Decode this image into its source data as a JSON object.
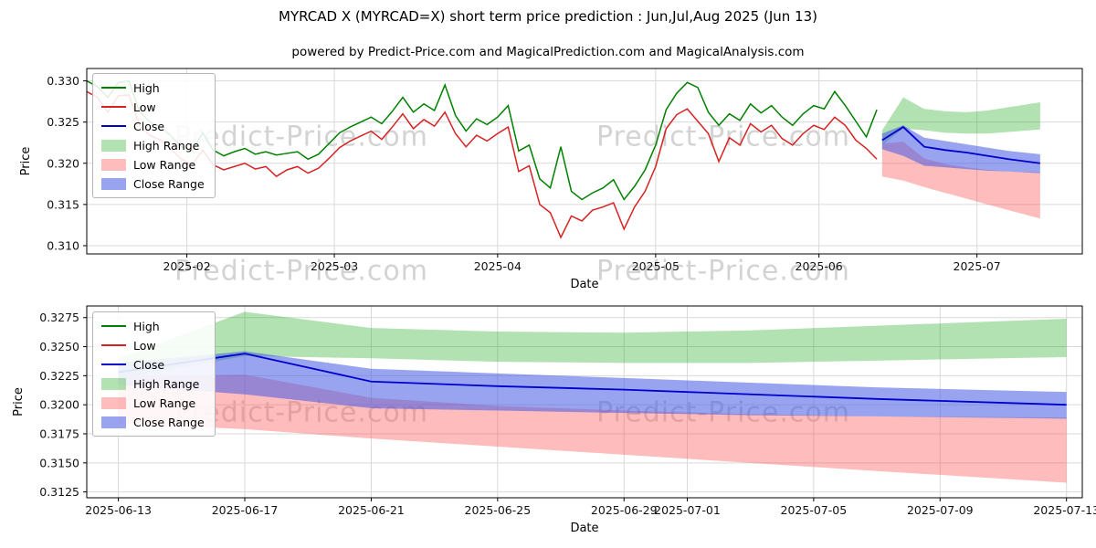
{
  "figure": {
    "title": "MYRCAD X (MYRCAD=X) short term price prediction : Jun,Jul,Aug 2025 (Jun 13)",
    "subtitle": "powered by Predict-Price.com and MagicalPrediction.com and MagicalAnalysis.com",
    "watermark_text": "Predict-Price.com"
  },
  "colors": {
    "high_line": "#008000",
    "low_line": "#d62222",
    "close_line": "#0000cd",
    "high_range_fill": "rgba(0,160,0,0.30)",
    "low_range_fill": "rgba(255,80,80,0.38)",
    "close_range_fill": "rgba(70,90,230,0.55)",
    "grid": "#d9d9d9",
    "frame": "#000000",
    "watermark": "rgba(140,140,140,0.38)"
  },
  "legend_items": [
    {
      "label": "High",
      "type": "line",
      "color_key": "high_line"
    },
    {
      "label": "Low",
      "type": "line",
      "color_key": "low_line"
    },
    {
      "label": "Close",
      "type": "line",
      "color_key": "close_line"
    },
    {
      "label": "High Range",
      "type": "patch",
      "color_key": "high_range_fill"
    },
    {
      "label": "Low Range",
      "type": "patch",
      "color_key": "low_range_fill"
    },
    {
      "label": "Close Range",
      "type": "patch",
      "color_key": "close_range_fill"
    }
  ],
  "chart_data": [
    {
      "type": "line",
      "title": "",
      "xlabel": "Date",
      "ylabel": "Price",
      "grid": true,
      "legend_loc": "upper left",
      "xlim": [
        "2025-01-13",
        "2025-07-21"
      ],
      "ylim": [
        0.309,
        0.3315
      ],
      "x_ticks": [
        {
          "date": "2025-02-01",
          "label": "2025-02"
        },
        {
          "date": "2025-03-01",
          "label": "2025-03"
        },
        {
          "date": "2025-04-01",
          "label": "2025-04"
        },
        {
          "date": "2025-05-01",
          "label": "2025-05"
        },
        {
          "date": "2025-06-01",
          "label": "2025-06"
        },
        {
          "date": "2025-07-01",
          "label": "2025-07"
        }
      ],
      "y_ticks": [
        {
          "value": 0.31,
          "label": "0.310"
        },
        {
          "value": 0.315,
          "label": "0.315"
        },
        {
          "value": 0.32,
          "label": "0.320"
        },
        {
          "value": 0.325,
          "label": "0.325"
        },
        {
          "value": 0.33,
          "label": "0.330"
        }
      ],
      "history": {
        "start_date": "2025-01-13",
        "step_days": 2,
        "high": [
          0.33,
          0.3293,
          0.328,
          0.3298,
          0.33,
          0.3263,
          0.325,
          0.3244,
          0.3233,
          0.322,
          0.3215,
          0.3237,
          0.3216,
          0.3209,
          0.3214,
          0.3218,
          0.3211,
          0.3214,
          0.321,
          0.3212,
          0.3214,
          0.3205,
          0.3211,
          0.3224,
          0.3237,
          0.3244,
          0.325,
          0.3256,
          0.3248,
          0.3263,
          0.328,
          0.3262,
          0.3272,
          0.3264,
          0.3295,
          0.3258,
          0.3239,
          0.3254,
          0.3247,
          0.3256,
          0.327,
          0.3215,
          0.3222,
          0.3181,
          0.317,
          0.322,
          0.3166,
          0.3156,
          0.3164,
          0.317,
          0.318,
          0.3156,
          0.3172,
          0.3192,
          0.3222,
          0.3265,
          0.3285,
          0.3298,
          0.3292,
          0.3262,
          0.3246,
          0.326,
          0.3252,
          0.3272,
          0.3261,
          0.327,
          0.3256,
          0.3246,
          0.326,
          0.327,
          0.3266,
          0.3287,
          0.327,
          0.3251,
          0.3232,
          0.3265
        ],
        "low": [
          0.3287,
          0.328,
          0.3262,
          0.3282,
          0.3283,
          0.3246,
          0.3234,
          0.3228,
          0.3217,
          0.3205,
          0.3198,
          0.3216,
          0.3198,
          0.3192,
          0.3196,
          0.32,
          0.3193,
          0.3196,
          0.3184,
          0.3192,
          0.3196,
          0.3188,
          0.3194,
          0.3206,
          0.3219,
          0.3227,
          0.3233,
          0.3239,
          0.3229,
          0.3244,
          0.326,
          0.3242,
          0.3253,
          0.3245,
          0.3262,
          0.3236,
          0.322,
          0.3234,
          0.3227,
          0.3236,
          0.3244,
          0.319,
          0.3197,
          0.315,
          0.314,
          0.311,
          0.3136,
          0.313,
          0.3143,
          0.3147,
          0.3152,
          0.312,
          0.3147,
          0.3166,
          0.3196,
          0.3242,
          0.3259,
          0.3266,
          0.3251,
          0.3236,
          0.3202,
          0.3231,
          0.3222,
          0.3248,
          0.3238,
          0.3246,
          0.323,
          0.3222,
          0.3236,
          0.3246,
          0.3241,
          0.3256,
          0.3246,
          0.3228,
          0.3218,
          0.3205
        ]
      },
      "forecast": {
        "dates": [
          "2025-06-13",
          "2025-06-17",
          "2025-06-21",
          "2025-06-25",
          "2025-06-29",
          "2025-07-03",
          "2025-07-07",
          "2025-07-13"
        ],
        "close": [
          0.3228,
          0.3244,
          0.322,
          0.3216,
          0.3213,
          0.3209,
          0.3205,
          0.32
        ],
        "high_range_upper": [
          0.324,
          0.328,
          0.3266,
          0.3263,
          0.3262,
          0.3264,
          0.3268,
          0.3274
        ],
        "high_range_lower": [
          0.3222,
          0.3242,
          0.324,
          0.3237,
          0.3236,
          0.3236,
          0.3238,
          0.3241
        ],
        "low_range_upper": [
          0.3224,
          0.3226,
          0.3206,
          0.3199,
          0.3195,
          0.3192,
          0.319,
          0.3189
        ],
        "low_range_lower": [
          0.3184,
          0.3179,
          0.3171,
          0.3164,
          0.3157,
          0.315,
          0.3143,
          0.3133
        ],
        "close_range_upper": [
          0.3236,
          0.3246,
          0.3231,
          0.3227,
          0.3223,
          0.3219,
          0.3215,
          0.3211
        ],
        "close_range_lower": [
          0.3217,
          0.3209,
          0.3197,
          0.3195,
          0.3193,
          0.3191,
          0.319,
          0.3188
        ]
      }
    },
    {
      "type": "line",
      "title": "",
      "xlabel": "Date",
      "ylabel": "Price",
      "grid": true,
      "legend_loc": "upper left",
      "xlim": [
        "2025-06-12",
        "2025-07-13T12:00:00Z"
      ],
      "ylim": [
        0.312,
        0.3285
      ],
      "x_ticks": [
        {
          "date": "2025-06-13",
          "label": "2025-06-13"
        },
        {
          "date": "2025-06-17",
          "label": "2025-06-17"
        },
        {
          "date": "2025-06-21",
          "label": "2025-06-21"
        },
        {
          "date": "2025-06-25",
          "label": "2025-06-25"
        },
        {
          "date": "2025-06-29",
          "label": "2025-06-29"
        },
        {
          "date": "2025-07-01",
          "label": "2025-07-01"
        },
        {
          "date": "2025-07-05",
          "label": "2025-07-05"
        },
        {
          "date": "2025-07-09",
          "label": "2025-07-09"
        },
        {
          "date": "2025-07-13",
          "label": "2025-07-13"
        }
      ],
      "y_ticks": [
        {
          "value": 0.3125,
          "label": "0.3125"
        },
        {
          "value": 0.315,
          "label": "0.3150"
        },
        {
          "value": 0.3175,
          "label": "0.3175"
        },
        {
          "value": 0.32,
          "label": "0.3200"
        },
        {
          "value": 0.3225,
          "label": "0.3225"
        },
        {
          "value": 0.325,
          "label": "0.3250"
        },
        {
          "value": 0.3275,
          "label": "0.3275"
        }
      ],
      "history": null,
      "forecast": {
        "dates": [
          "2025-06-13",
          "2025-06-17",
          "2025-06-21",
          "2025-06-25",
          "2025-06-29",
          "2025-07-03",
          "2025-07-07",
          "2025-07-13"
        ],
        "close": [
          0.3228,
          0.3244,
          0.322,
          0.3216,
          0.3213,
          0.3209,
          0.3205,
          0.32
        ],
        "high_range_upper": [
          0.324,
          0.328,
          0.3266,
          0.3263,
          0.3262,
          0.3264,
          0.3268,
          0.3274
        ],
        "high_range_lower": [
          0.3222,
          0.3242,
          0.324,
          0.3237,
          0.3236,
          0.3236,
          0.3238,
          0.3241
        ],
        "low_range_upper": [
          0.3224,
          0.3226,
          0.3206,
          0.3199,
          0.3195,
          0.3192,
          0.319,
          0.3189
        ],
        "low_range_lower": [
          0.3184,
          0.3179,
          0.3171,
          0.3164,
          0.3157,
          0.315,
          0.3143,
          0.3133
        ],
        "close_range_upper": [
          0.3236,
          0.3246,
          0.3231,
          0.3227,
          0.3223,
          0.3219,
          0.3215,
          0.3211
        ],
        "close_range_lower": [
          0.3217,
          0.3209,
          0.3197,
          0.3195,
          0.3193,
          0.3191,
          0.319,
          0.3188
        ]
      }
    }
  ]
}
